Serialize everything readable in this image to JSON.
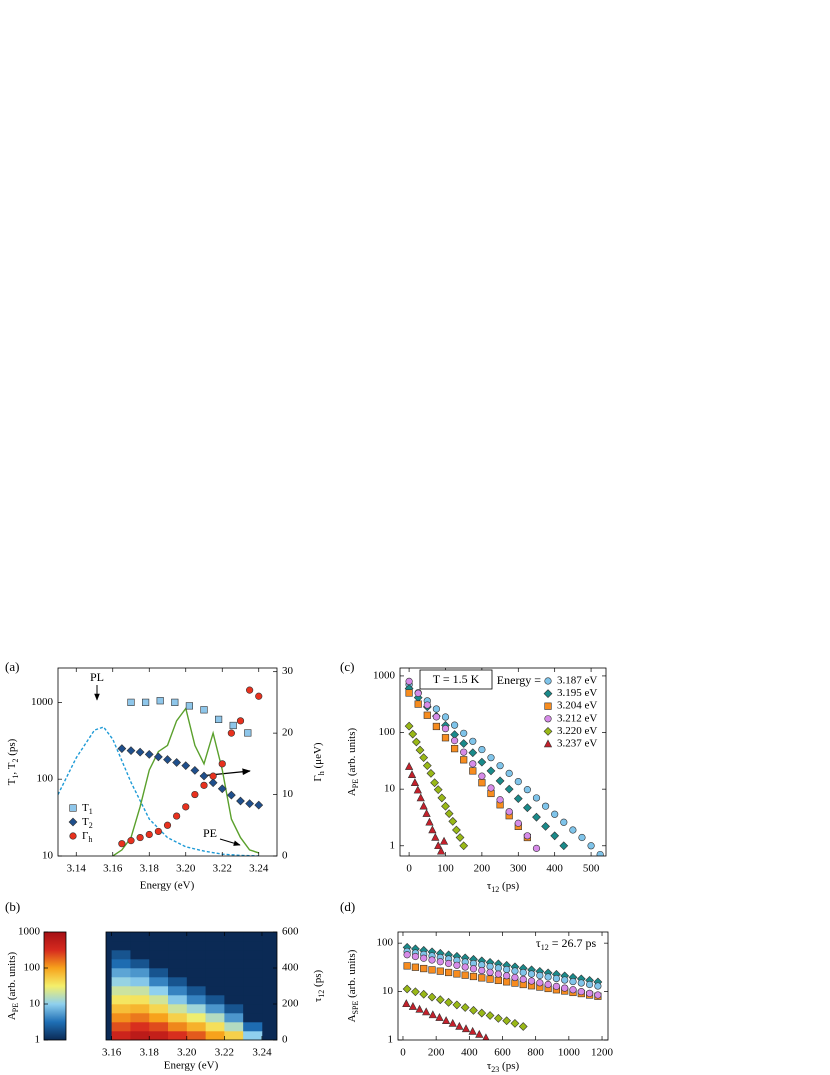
{
  "chart_data": [
    {
      "type": "scatter",
      "panel_label": "(a)",
      "xlabel": "Energy (eV)",
      "ylabel": [
        "T",
        "1",
        ", T",
        "2",
        " (ps)"
      ],
      "y2label": [
        "Γ",
        "h",
        " (μeV)"
      ],
      "xlim": [
        3.13,
        3.25
      ],
      "xticks": [
        3.14,
        3.16,
        3.18,
        {
          "value": 3.2,
          "label": "3.20"
        },
        3.22,
        3.24
      ],
      "ylog": true,
      "ylim": [
        10,
        2800
      ],
      "yticks": [
        10,
        100,
        1000
      ],
      "y2lim": [
        0,
        30.6
      ],
      "y2ticks": [
        0,
        10,
        20,
        30
      ],
      "legend": "lower left",
      "annotations": [
        "PL",
        "PE"
      ],
      "series": [
        {
          "name": [
            "T",
            "1"
          ],
          "color": "#8ec6ea",
          "marker": "square",
          "x": [
            3.17,
            3.178,
            3.186,
            3.194,
            3.202,
            3.21,
            3.218,
            3.226,
            3.234
          ],
          "values": [
            1000,
            1000,
            1050,
            1000,
            900,
            800,
            600,
            500,
            400
          ]
        },
        {
          "name": [
            "T",
            "2"
          ],
          "color": "#1f4f8c",
          "marker": "diamond",
          "x": [
            3.165,
            3.17,
            3.175,
            3.18,
            3.185,
            3.19,
            3.195,
            3.2,
            3.205,
            3.21,
            3.215,
            3.22,
            3.225,
            3.23,
            3.235,
            3.24
          ],
          "values": [
            250,
            235,
            225,
            210,
            195,
            180,
            165,
            150,
            130,
            110,
            90,
            75,
            62,
            52,
            48,
            46
          ]
        },
        {
          "name": [
            "Γ",
            "h"
          ],
          "color": "#e8311e",
          "marker": "circle",
          "axis": "y2",
          "x": [
            3.165,
            3.17,
            3.175,
            3.18,
            3.185,
            3.19,
            3.195,
            3.2,
            3.205,
            3.21,
            3.215,
            3.22,
            3.225,
            3.23,
            3.235,
            3.24
          ],
          "values": [
            2,
            2.5,
            3,
            3.5,
            4,
            5,
            6.5,
            8,
            10,
            11.5,
            13,
            15,
            20,
            22,
            27,
            26
          ]
        },
        {
          "color": "#1e9ad6",
          "line": "dashed",
          "axis": "y2",
          "x": [
            3.13,
            3.14,
            3.15,
            3.155,
            3.16,
            3.17,
            3.18,
            3.19,
            3.2,
            3.21,
            3.22,
            3.23,
            3.24
          ],
          "values": [
            10,
            16,
            20.5,
            21,
            19,
            12,
            6,
            3,
            1.5,
            0.8,
            0.3,
            0.1,
            0
          ]
        },
        {
          "color": "#5aa02c",
          "line": "solid",
          "axis": "y2",
          "x": [
            3.16,
            3.165,
            3.17,
            3.175,
            3.18,
            3.185,
            3.19,
            3.195,
            3.2,
            3.205,
            3.21,
            3.215,
            3.22,
            3.225,
            3.23,
            3.235,
            3.24
          ],
          "values": [
            0,
            1,
            3,
            8,
            14,
            17,
            18,
            22,
            24,
            18,
            15,
            20,
            14,
            6,
            3,
            1,
            0.5
          ]
        }
      ]
    },
    {
      "type": "heatmap",
      "panel_label": "(b)",
      "xlabel": "Energy (eV)",
      "ylabel": [
        "τ",
        "12",
        " (ps)"
      ],
      "yaxis_side": "right",
      "xlim": [
        3.157,
        3.248
      ],
      "xticks": [
        3.16,
        3.18,
        {
          "value": 3.2,
          "label": "3.20"
        },
        3.22,
        3.24
      ],
      "ylim": [
        0,
        600
      ],
      "yticks": [
        0,
        200,
        400,
        600
      ],
      "clabel": [
        "A",
        "PE",
        " (arb. units)"
      ],
      "clim": [
        1,
        1000
      ],
      "cticks": [
        1,
        10,
        100,
        1000
      ],
      "colormap": [
        "#0b2a55",
        "#1f6fb5",
        "#8fd0ee",
        "#f4ef6a",
        "#f7a21c",
        "#d62a1e",
        "#a50f15"
      ],
      "x": [
        3.165,
        3.175,
        3.185,
        3.195,
        3.205,
        3.215,
        3.225,
        3.235
      ],
      "y": [
        25,
        75,
        125,
        175,
        225,
        275,
        325,
        375,
        425,
        475,
        525,
        575
      ],
      "z": [
        [
          400,
          220,
          120,
          66,
          36,
          20,
          11,
          6,
          3,
          2,
          1,
          1
        ],
        [
          600,
          300,
          150,
          75,
          38,
          19,
          9,
          5,
          2,
          1,
          1,
          1
        ],
        [
          500,
          230,
          100,
          46,
          21,
          10,
          4,
          2,
          1,
          1,
          1,
          1
        ],
        [
          300,
          130,
          50,
          20,
          9,
          4,
          2,
          1,
          1,
          1,
          1,
          1
        ],
        [
          200,
          80,
          30,
          12,
          4,
          2,
          1,
          1,
          1,
          1,
          1,
          1
        ],
        [
          100,
          40,
          15,
          5,
          2,
          1,
          1,
          1,
          1,
          1,
          1,
          1
        ],
        [
          50,
          15,
          5,
          2,
          1,
          1,
          1,
          1,
          1,
          1,
          1,
          1
        ],
        [
          10,
          3,
          1,
          1,
          1,
          1,
          1,
          1,
          1,
          1,
          1,
          1
        ]
      ]
    },
    {
      "type": "scatter",
      "panel_label": "(c)",
      "xlabel": [
        "τ",
        "12",
        " (ps)"
      ],
      "ylabel": [
        "A",
        "PE",
        " (arb. units)"
      ],
      "xlim": [
        -25,
        541
      ],
      "xticks": [
        0,
        100,
        200,
        300,
        400,
        500
      ],
      "ylog": true,
      "ylim": [
        0.66,
        1380
      ],
      "yticks": [
        1,
        10,
        100,
        1000
      ],
      "legend": "upper right",
      "legend_title": "Energy =",
      "annotations": [
        "T = 1.5 K"
      ],
      "series": [
        {
          "name": "3.187 eV",
          "color": "#7fc4ea",
          "marker": "circle",
          "x": [
            0,
            25,
            50,
            75,
            100,
            125,
            150,
            175,
            200,
            225,
            250,
            275,
            300,
            325,
            350,
            375,
            400,
            425,
            450,
            475,
            500,
            525
          ],
          "values": [
            700,
            504,
            363,
            261,
            188,
            135,
            97,
            70,
            50,
            36,
            26,
            19,
            13.6,
            9.8,
            7,
            5,
            3.6,
            2.6,
            1.9,
            1.4,
            1,
            0.7
          ]
        },
        {
          "name": "3.195 eV",
          "color": "#1a8a8a",
          "marker": "diamond",
          "x": [
            0,
            25,
            50,
            75,
            100,
            125,
            150,
            175,
            200,
            225,
            250,
            275,
            300,
            325,
            350,
            375,
            400,
            425
          ],
          "values": [
            600,
            413,
            284,
            195,
            134,
            92,
            64,
            44,
            30,
            21,
            14,
            10,
            6.8,
            4.7,
            3.2,
            2.2,
            1.5,
            1
          ]
        },
        {
          "name": "3.204 eV",
          "color": "#f78c1f",
          "marker": "square",
          "x": [
            0,
            25,
            50,
            75,
            100,
            125,
            150,
            175,
            200,
            225,
            250,
            275,
            300,
            325
          ],
          "values": [
            500,
            318,
            202,
            128,
            81,
            52,
            33,
            21,
            13,
            8.4,
            5.3,
            3.4,
            2.2,
            1.4
          ]
        },
        {
          "name": "3.212 eV",
          "color": "#d68be8",
          "marker": "circle",
          "x": [
            0,
            25,
            50,
            75,
            100,
            125,
            150,
            175,
            200,
            225,
            250,
            275,
            300,
            325,
            350
          ],
          "values": [
            800,
            494,
            306,
            189,
            117,
            72,
            45,
            28,
            17,
            10.5,
            6.5,
            4,
            2.5,
            1.5,
            0.9
          ]
        },
        {
          "name": "3.220 eV",
          "color": "#99b817",
          "marker": "diamond",
          "x": [
            0,
            10,
            20,
            30,
            40,
            50,
            60,
            70,
            80,
            90,
            100,
            110,
            120,
            130,
            140,
            150
          ],
          "values": [
            130,
            94,
            68,
            49,
            36,
            26,
            19,
            13,
            9.8,
            7,
            5,
            3.7,
            2.7,
            1.9,
            1.4,
            1
          ]
        },
        {
          "name": "3.237 eV",
          "color": "#c4202b",
          "marker": "triangle",
          "x": [
            0,
            8,
            16,
            24,
            32,
            40,
            48,
            56,
            64,
            72,
            80,
            88,
            96
          ],
          "values": [
            25,
            18,
            13,
            9.6,
            7,
            5,
            3.7,
            2.6,
            1.9,
            1.4,
            1,
            0.8,
            1.2
          ]
        }
      ]
    },
    {
      "type": "scatter",
      "panel_label": "(d)",
      "xlabel": [
        "τ",
        "23",
        " (ps)"
      ],
      "ylabel": [
        "A",
        "SPE",
        " (arb. units)"
      ],
      "xlim": [
        -30,
        1236
      ],
      "xticks": [
        0,
        200,
        400,
        600,
        800,
        1000,
        1200
      ],
      "ylog": true,
      "ylim": [
        1,
        170
      ],
      "yticks": [
        1,
        10,
        100
      ],
      "annotations": [
        [
          "τ",
          "12",
          " = 26.7 ps"
        ]
      ],
      "series": [
        {
          "color": "#1a8a8a",
          "marker": "diamond",
          "x": [
            25,
            75,
            125,
            175,
            225,
            275,
            325,
            375,
            425,
            475,
            525,
            575,
            625,
            675,
            725,
            775,
            825,
            875,
            925,
            975,
            1025,
            1075,
            1125,
            1175
          ],
          "values": [
            82,
            76.3,
            71.1,
            66.2,
            61.6,
            57.4,
            53.4,
            49.7,
            46.3,
            43.1,
            40.1,
            37.4,
            34.8,
            32.4,
            30.2,
            28.1,
            26.1,
            24.3,
            22.7,
            21.1,
            19.6,
            18.3,
            17,
            15.8
          ]
        },
        {
          "color": "#7fc4ea",
          "marker": "circle",
          "x": [
            25,
            75,
            125,
            175,
            225,
            275,
            325,
            375,
            425,
            475,
            525,
            575,
            625,
            675,
            725,
            775,
            825,
            875,
            925,
            975,
            1025,
            1075,
            1125,
            1175
          ],
          "values": [
            67.5,
            62.8,
            58.5,
            54.5,
            50.7,
            47.2,
            44,
            40.9,
            38.1,
            35.5,
            33,
            30.7,
            28.6,
            26.6,
            24.8,
            23.1,
            21.5,
            20,
            18.6,
            17.3,
            16.1,
            15,
            14,
            13
          ]
        },
        {
          "color": "#f78c1f",
          "marker": "square",
          "x": [
            25,
            75,
            125,
            175,
            225,
            275,
            325,
            375,
            425,
            475,
            525,
            575,
            625,
            675,
            725,
            775,
            825,
            875,
            925,
            975,
            1025,
            1075,
            1125,
            1175
          ],
          "values": [
            33.9,
            31.8,
            29.9,
            28.1,
            26.4,
            24.8,
            23.2,
            21.8,
            20.5,
            19.2,
            18.1,
            17,
            15.9,
            15,
            14,
            13.2,
            12.4,
            11.6,
            10.9,
            10.3,
            9.6,
            9.1,
            8.5,
            8
          ]
        },
        {
          "color": "#d68be8",
          "marker": "circle",
          "x": [
            25,
            75,
            125,
            175,
            225,
            275,
            325,
            375,
            425,
            475,
            525,
            575,
            625,
            675,
            725,
            775,
            825,
            875,
            925,
            975,
            1025,
            1075,
            1125,
            1175
          ],
          "values": [
            57.6,
            53,
            48.8,
            44.9,
            41.3,
            38,
            34.9,
            32.1,
            29.6,
            27.2,
            25,
            23,
            21.2,
            19.5,
            17.9,
            16.5,
            15.2,
            14,
            12.8,
            11.8,
            10.9,
            10,
            9.2,
            8.5
          ]
        },
        {
          "color": "#99b817",
          "marker": "diamond",
          "x": [
            25,
            75,
            125,
            175,
            225,
            275,
            325,
            375,
            425,
            475,
            525,
            575,
            625,
            675,
            725
          ],
          "values": [
            11.3,
            9.9,
            8.8,
            7.7,
            6.8,
            6,
            5.3,
            4.7,
            4.1,
            3.6,
            3.2,
            2.8,
            2.5,
            2.2,
            1.9
          ]
        },
        {
          "color": "#c4202b",
          "marker": "triangle",
          "x": [
            20,
            60,
            100,
            140,
            180,
            220,
            260,
            300,
            340,
            380,
            420,
            460,
            500
          ],
          "values": [
            5.6,
            4.9,
            4.3,
            3.8,
            3.3,
            2.9,
            2.5,
            2.2,
            1.9,
            1.7,
            1.5,
            1.3,
            1.1
          ]
        }
      ]
    }
  ]
}
